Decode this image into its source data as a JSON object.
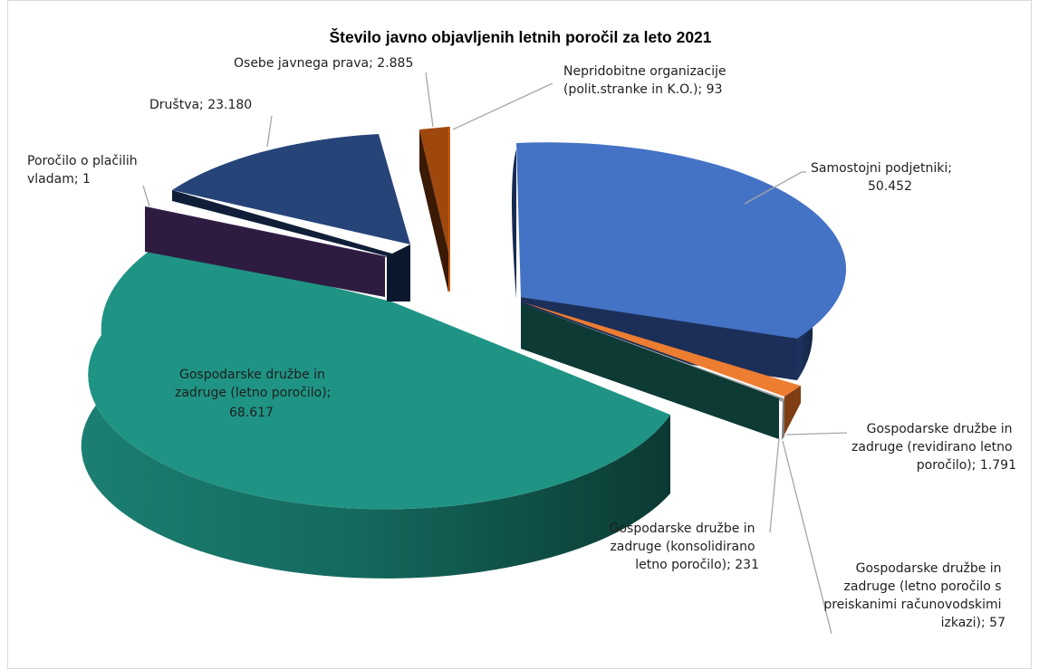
{
  "chart_data": {
    "type": "pie",
    "title": "Število javno objavljenih letnih poročil za leto 2021",
    "slices": [
      {
        "label_lines": [
          "Samostojni podjetniki;",
          "50.452"
        ],
        "value": 50452,
        "color": "#4472c4"
      },
      {
        "label_lines": [
          "Gospodarske družbe in",
          "zadruge (revidirano letno",
          "poročilo); 1.791"
        ],
        "value": 1791,
        "color": "#ed7d31"
      },
      {
        "label_lines": [
          "Gospodarske družbe in",
          "zadruge (letno poročilo s",
          "preiskanimi računovodskimi",
          "izkazi); 57"
        ],
        "value": 57,
        "color": "#a5a5a5"
      },
      {
        "label_lines": [
          "Gospodarske družbe in",
          "zadruge (konsolidirano",
          "letno poročilo); 231"
        ],
        "value": 231,
        "color": "#1a4a43"
      },
      {
        "label_lines": [
          "Gospodarske družbe in",
          "zadruge (letno poročilo);",
          "68.617"
        ],
        "value": 68617,
        "color": "#1f9484"
      },
      {
        "label_lines": [
          "Poročilo o plačilih",
          "vladam; 1"
        ],
        "value": 1,
        "color": "#3b2050"
      },
      {
        "label_lines": [
          "Društva; 23.180"
        ],
        "value": 23180,
        "color": "#264478"
      },
      {
        "label_lines": [
          "Osebe javnega prava; 2.885"
        ],
        "value": 2885,
        "color": "#9e480e"
      },
      {
        "label_lines": [
          "Nepridobitne organizacije",
          "(polit.stranke in K.O.); 93"
        ],
        "value": 93,
        "color": "#c55a11"
      }
    ]
  }
}
